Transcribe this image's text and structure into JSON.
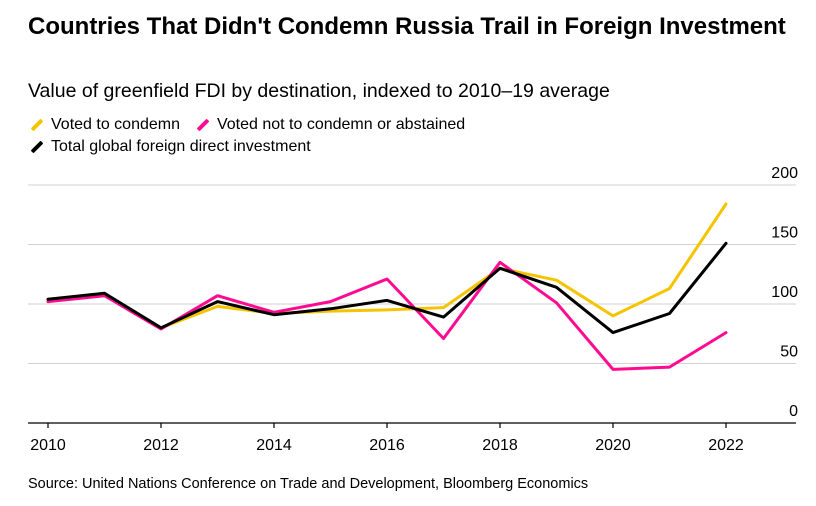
{
  "chart_data": {
    "type": "line",
    "title": "Countries That Didn't Condemn Russia Trail in Foreign Investment",
    "subtitle": "Value of greenfield FDI by destination, indexed to 2010–19 average",
    "xlabel": "",
    "ylabel": "",
    "x": [
      2010,
      2011,
      2012,
      2013,
      2014,
      2015,
      2016,
      2017,
      2018,
      2019,
      2020,
      2021,
      2022
    ],
    "xticks": [
      "2010",
      "2012",
      "2014",
      "2016",
      "2018",
      "2020",
      "2022"
    ],
    "yticks": [
      "0",
      "50",
      "100",
      "150",
      "200"
    ],
    "xlim": [
      2010,
      2023.3
    ],
    "ylim": [
      0,
      200
    ],
    "grid": true,
    "legend_position": "top-left",
    "series": [
      {
        "name": "Voted to condemn",
        "color": "#f5c400",
        "values": [
          104,
          108,
          80,
          98,
          92,
          94,
          95,
          97,
          130,
          120,
          90,
          113,
          184
        ]
      },
      {
        "name": "Voted not to condemn or abstained",
        "color": "#ff0a91",
        "values": [
          102,
          107,
          79,
          107,
          93,
          102,
          121,
          71,
          135,
          101,
          45,
          47,
          76
        ]
      },
      {
        "name": "Total global foreign direct investment",
        "color": "#000000",
        "values": [
          104,
          109,
          80,
          102,
          91,
          96,
          103,
          89,
          130,
          114,
          76,
          92,
          151
        ]
      }
    ],
    "source": "Source: United Nations Conference on Trade and Development, Bloomberg Economics"
  }
}
